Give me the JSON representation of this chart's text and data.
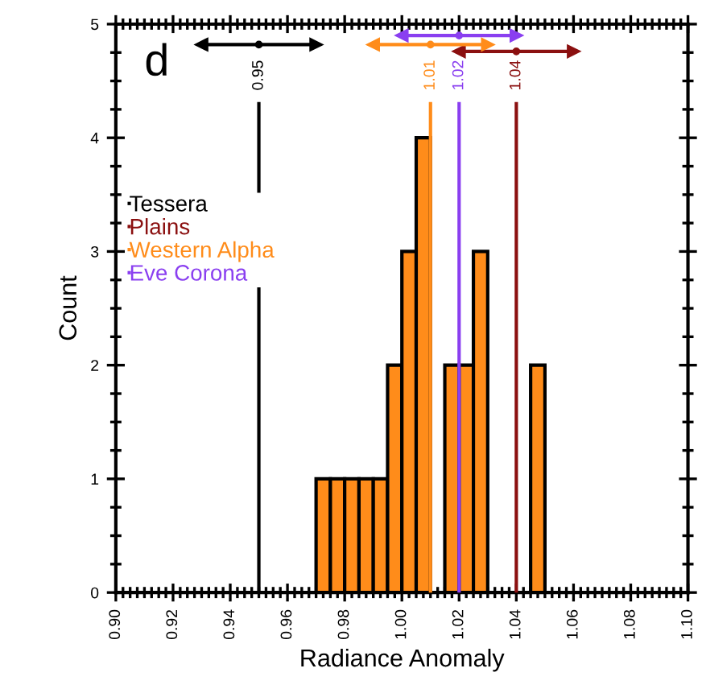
{
  "chart_data": {
    "type": "histogram",
    "xlabel": "Radiance Anomaly",
    "ylabel": "Count",
    "color": "#ff8c1a",
    "bins": [
      0.97,
      0.975,
      0.98,
      0.985,
      0.99,
      0.995,
      1.0,
      1.005,
      1.01,
      1.015,
      1.02,
      1.025,
      1.03,
      1.035,
      1.04,
      1.045,
      1.05
    ],
    "values": [
      1,
      1,
      1,
      1,
      1,
      2,
      3,
      4,
      0,
      2,
      2,
      3,
      0,
      0,
      0,
      2
    ],
    "xlim": [
      0.9,
      1.1
    ],
    "xticks": [
      {
        "value": 0.9,
        "label": "0.90"
      },
      0.92,
      0.94,
      0.96,
      0.98,
      {
        "value": 1.0,
        "label": "1.00"
      },
      1.02,
      1.04,
      1.06,
      1.08,
      {
        "value": 1.1,
        "label": "1.10"
      }
    ],
    "ylim": [
      0,
      5
    ],
    "yticks": [
      0,
      1,
      2,
      3,
      4,
      5
    ],
    "series": [
      {
        "type": "scatter",
        "name": "Tessera",
        "color": "#000000",
        "x": [
          0.95
        ],
        "values": [
          4.82
        ],
        "xerrors": [
          0.02
        ]
      },
      {
        "type": "scatter",
        "name": "Plains",
        "color": "#8b1010",
        "x": [
          1.04
        ],
        "values": [
          4.76
        ],
        "xerrors": [
          0.02
        ]
      },
      {
        "type": "scatter",
        "name": "Western Alpha",
        "color": "#ff8c1a",
        "x": [
          1.01
        ],
        "values": [
          4.82
        ],
        "xerrors": [
          0.02
        ]
      },
      {
        "type": "scatter",
        "name": "Eve Corona",
        "color": "#8a3ff0",
        "x": [
          1.02
        ],
        "values": [
          4.9
        ],
        "xerrors": [
          0.02
        ]
      }
    ],
    "marker": "none",
    "ref_lines": [
      {
        "axis": "x",
        "value": 0.95,
        "label": "0.95",
        "color": "#000000"
      },
      {
        "axis": "x",
        "value": 1.01,
        "label": "1.01",
        "color": "#ff8c1a"
      },
      {
        "axis": "x",
        "value": 1.02,
        "label": "1.02",
        "color": "#8a3ff0"
      },
      {
        "axis": "x",
        "value": 1.04,
        "label": "1.04",
        "color": "#8b1010"
      }
    ],
    "annotations": [
      "d"
    ],
    "legend": "left",
    "grid": false
  }
}
